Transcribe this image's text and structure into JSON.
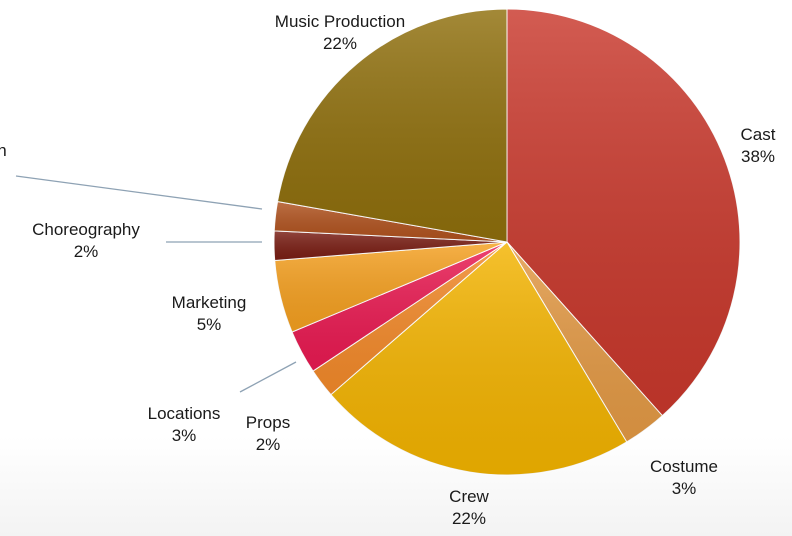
{
  "chart_data": {
    "type": "pie",
    "title": "",
    "start_angle_deg": 0,
    "direction": "clockwise",
    "slices": [
      {
        "label": "Cast",
        "value": 38,
        "pct_label": "38%",
        "color": "#c9382c"
      },
      {
        "label": "Costume",
        "value": 3,
        "pct_label": "3%",
        "color": "#e49a45"
      },
      {
        "label": "Crew",
        "value": 22,
        "pct_label": "22%",
        "color": "#f4b400"
      },
      {
        "label": "Props",
        "value": 2,
        "pct_label": "2%",
        "color": "#f48a2a"
      },
      {
        "label": "Locations",
        "value": 3,
        "pct_label": "3%",
        "color": "#ea1a52"
      },
      {
        "label": "Marketing",
        "value": 5,
        "pct_label": "5%",
        "color": "#f5a020"
      },
      {
        "label": "Choreography",
        "value": 2,
        "pct_label": "2%",
        "color": "#7a1e14"
      },
      {
        "label": "h",
        "value": 2,
        "pct_label": "",
        "color": "#b0521e"
      },
      {
        "label": "Music Production",
        "value": 22,
        "pct_label": "22%",
        "color": "#8f6f0c"
      }
    ],
    "legend": "none",
    "leader_line_color": "#8ea2b4"
  }
}
